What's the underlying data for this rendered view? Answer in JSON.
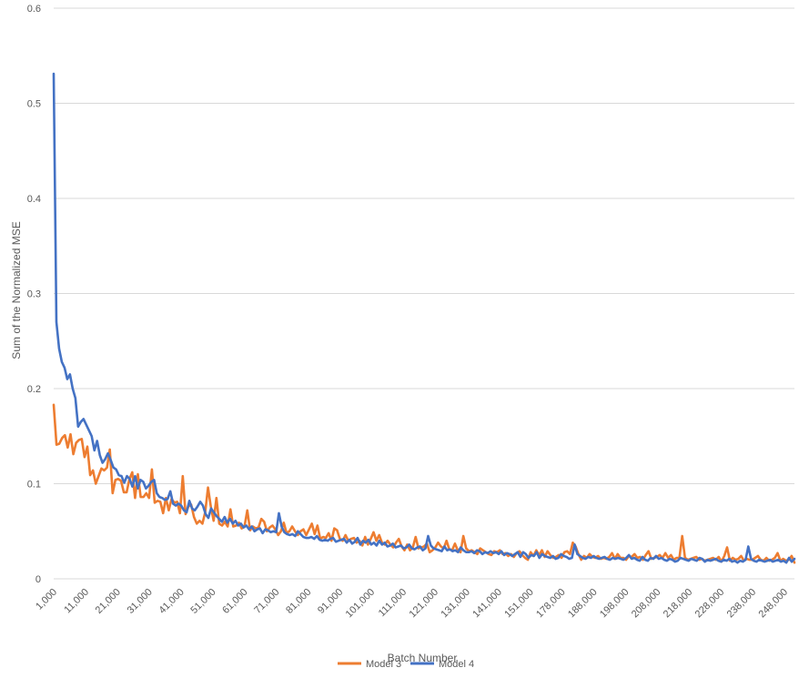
{
  "chart_data": {
    "type": "line",
    "title": "",
    "xlabel": "Batch Number",
    "ylabel": "Sum of the Normalized MSE",
    "ylim": [
      0,
      0.6
    ],
    "y_ticks": [
      "0",
      "0.1",
      "0.2",
      "0.3",
      "0.4",
      "0.5",
      "0.6"
    ],
    "x_tick_labels": [
      "1,000",
      "11,000",
      "21,000",
      "31,000",
      "41,000",
      "51,000",
      "61,000",
      "71,000",
      "81,000",
      "91,000",
      "101,000",
      "111,000",
      "121,000",
      "131,000",
      "141,000",
      "151,000",
      "178,000",
      "188,000",
      "198,000",
      "208,000",
      "218,000",
      "228,000",
      "238,000",
      "248,000"
    ],
    "grid": true,
    "legend_position": "bottom",
    "colors": {
      "Model 3": "#ED7D31",
      "Model 4": "#4472C4"
    },
    "series": [
      {
        "name": "Model 3",
        "values": [
          0.183,
          0.141,
          0.142,
          0.148,
          0.151,
          0.138,
          0.152,
          0.131,
          0.143,
          0.146,
          0.147,
          0.128,
          0.139,
          0.109,
          0.114,
          0.1,
          0.108,
          0.116,
          0.114,
          0.117,
          0.136,
          0.09,
          0.104,
          0.105,
          0.103,
          0.091,
          0.091,
          0.105,
          0.112,
          0.085,
          0.11,
          0.086,
          0.086,
          0.09,
          0.085,
          0.115,
          0.08,
          0.082,
          0.081,
          0.069,
          0.085,
          0.072,
          0.084,
          0.08,
          0.081,
          0.069,
          0.108,
          0.068,
          0.076,
          0.078,
          0.065,
          0.058,
          0.061,
          0.058,
          0.07,
          0.096,
          0.076,
          0.061,
          0.085,
          0.058,
          0.056,
          0.06,
          0.055,
          0.073,
          0.055,
          0.056,
          0.059,
          0.053,
          0.055,
          0.072,
          0.051,
          0.055,
          0.053,
          0.054,
          0.063,
          0.06,
          0.05,
          0.054,
          0.056,
          0.052,
          0.046,
          0.05,
          0.059,
          0.048,
          0.05,
          0.055,
          0.05,
          0.046,
          0.05,
          0.052,
          0.046,
          0.052,
          0.058,
          0.047,
          0.056,
          0.042,
          0.044,
          0.043,
          0.048,
          0.04,
          0.053,
          0.051,
          0.042,
          0.04,
          0.046,
          0.04,
          0.042,
          0.043,
          0.038,
          0.04,
          0.035,
          0.044,
          0.036,
          0.042,
          0.049,
          0.04,
          0.046,
          0.038,
          0.036,
          0.04,
          0.036,
          0.033,
          0.038,
          0.042,
          0.034,
          0.03,
          0.036,
          0.03,
          0.033,
          0.044,
          0.032,
          0.033,
          0.034,
          0.037,
          0.028,
          0.03,
          0.033,
          0.038,
          0.034,
          0.032,
          0.04,
          0.031,
          0.03,
          0.037,
          0.03,
          0.028,
          0.045,
          0.032,
          0.029,
          0.03,
          0.028,
          0.026,
          0.032,
          0.03,
          0.028,
          0.026,
          0.025,
          0.029,
          0.028,
          0.03,
          0.026,
          0.027,
          0.024,
          0.026,
          0.023,
          0.027,
          0.029,
          0.025,
          0.022,
          0.02,
          0.028,
          0.024,
          0.03,
          0.025,
          0.03,
          0.023,
          0.029,
          0.025,
          0.022,
          0.023,
          0.025,
          0.022,
          0.028,
          0.029,
          0.026,
          0.038,
          0.034,
          0.026,
          0.02,
          0.024,
          0.022,
          0.026,
          0.023,
          0.022,
          0.024,
          0.021,
          0.022,
          0.021,
          0.023,
          0.027,
          0.021,
          0.026,
          0.022,
          0.022,
          0.02,
          0.024,
          0.023,
          0.026,
          0.022,
          0.023,
          0.02,
          0.025,
          0.029,
          0.021,
          0.022,
          0.023,
          0.025,
          0.022,
          0.027,
          0.022,
          0.025,
          0.02,
          0.022,
          0.022,
          0.045,
          0.022,
          0.02,
          0.021,
          0.022,
          0.023,
          0.02,
          0.021,
          0.019,
          0.02,
          0.021,
          0.022,
          0.02,
          0.023,
          0.018,
          0.024,
          0.033,
          0.019,
          0.022,
          0.02,
          0.021,
          0.024,
          0.019,
          0.021,
          0.02,
          0.02,
          0.022,
          0.024,
          0.02,
          0.019,
          0.022,
          0.019,
          0.02,
          0.022,
          0.027,
          0.019,
          0.021,
          0.019,
          0.02,
          0.024,
          0.017
        ],
        "values_count_note": null
      },
      {
        "name": "Model 4",
        "values": [
          0.531,
          0.27,
          0.242,
          0.228,
          0.222,
          0.21,
          0.215,
          0.2,
          0.19,
          0.16,
          0.165,
          0.168,
          0.162,
          0.156,
          0.15,
          0.135,
          0.145,
          0.13,
          0.122,
          0.126,
          0.132,
          0.125,
          0.117,
          0.115,
          0.109,
          0.108,
          0.101,
          0.108,
          0.105,
          0.097,
          0.108,
          0.095,
          0.104,
          0.102,
          0.095,
          0.098,
          0.102,
          0.104,
          0.09,
          0.086,
          0.085,
          0.083,
          0.084,
          0.092,
          0.079,
          0.077,
          0.079,
          0.077,
          0.072,
          0.07,
          0.082,
          0.074,
          0.072,
          0.076,
          0.081,
          0.077,
          0.068,
          0.064,
          0.074,
          0.07,
          0.066,
          0.063,
          0.06,
          0.065,
          0.059,
          0.063,
          0.058,
          0.061,
          0.056,
          0.058,
          0.054,
          0.056,
          0.052,
          0.055,
          0.05,
          0.052,
          0.053,
          0.048,
          0.052,
          0.051,
          0.049,
          0.05,
          0.049,
          0.069,
          0.055,
          0.049,
          0.047,
          0.046,
          0.047,
          0.045,
          0.05,
          0.047,
          0.044,
          0.043,
          0.043,
          0.044,
          0.042,
          0.045,
          0.041,
          0.04,
          0.041,
          0.04,
          0.042,
          0.043,
          0.039,
          0.04,
          0.041,
          0.042,
          0.038,
          0.041,
          0.037,
          0.039,
          0.043,
          0.036,
          0.04,
          0.038,
          0.041,
          0.036,
          0.038,
          0.035,
          0.04,
          0.036,
          0.038,
          0.034,
          0.035,
          0.037,
          0.033,
          0.034,
          0.035,
          0.032,
          0.033,
          0.036,
          0.032,
          0.031,
          0.033,
          0.034,
          0.03,
          0.032,
          0.045,
          0.035,
          0.032,
          0.031,
          0.03,
          0.029,
          0.034,
          0.03,
          0.031,
          0.029,
          0.03,
          0.028,
          0.033,
          0.03,
          0.028,
          0.028,
          0.029,
          0.027,
          0.03,
          0.029,
          0.026,
          0.028,
          0.027,
          0.029,
          0.027,
          0.028,
          0.026,
          0.029,
          0.025,
          0.027,
          0.026,
          0.024,
          0.026,
          0.028,
          0.023,
          0.028,
          0.026,
          0.022,
          0.025,
          0.024,
          0.028,
          0.022,
          0.026,
          0.024,
          0.023,
          0.022,
          0.024,
          0.021,
          0.022,
          0.026,
          0.024,
          0.023,
          0.021,
          0.022,
          0.036,
          0.026,
          0.024,
          0.022,
          0.021,
          0.023,
          0.022,
          0.024,
          0.022,
          0.021,
          0.022,
          0.023,
          0.021,
          0.02,
          0.022,
          0.021,
          0.022,
          0.021,
          0.02,
          0.022,
          0.025,
          0.021,
          0.022,
          0.02,
          0.019,
          0.023,
          0.02,
          0.019,
          0.022,
          0.021,
          0.024,
          0.021,
          0.022,
          0.02,
          0.019,
          0.021,
          0.02,
          0.018,
          0.019,
          0.022,
          0.021,
          0.02,
          0.019,
          0.021,
          0.02,
          0.019,
          0.022,
          0.021,
          0.018,
          0.02,
          0.019,
          0.02,
          0.021,
          0.019,
          0.018,
          0.02,
          0.019,
          0.021,
          0.018,
          0.019,
          0.017,
          0.019,
          0.018,
          0.02,
          0.034,
          0.021,
          0.019,
          0.018,
          0.02,
          0.019,
          0.018,
          0.019,
          0.02,
          0.018,
          0.019,
          0.02,
          0.018,
          0.019,
          0.017,
          0.022,
          0.018,
          0.021
        ]
      }
    ]
  }
}
